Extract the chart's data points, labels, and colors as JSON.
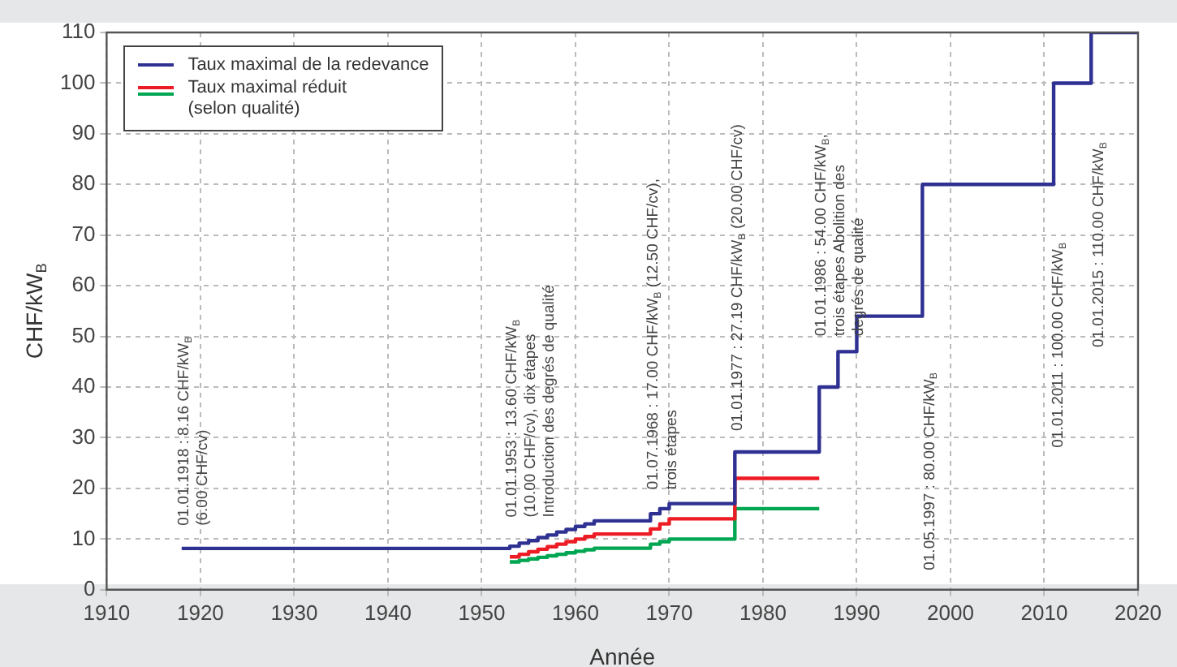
{
  "chart_data": {
    "type": "step",
    "xlabel": "Année",
    "ylabel": "CHF/kW$_{B}$",
    "xlim": [
      1910,
      2020
    ],
    "xticks": [
      1910,
      1920,
      1930,
      1940,
      1950,
      1960,
      1970,
      1980,
      1990,
      2000,
      2010,
      2020
    ],
    "ylim": [
      0,
      110
    ],
    "yticks": [
      0,
      10,
      20,
      30,
      40,
      50,
      60,
      70,
      80,
      90,
      100,
      110
    ],
    "grid": true,
    "legend": "top left",
    "series": [
      {
        "name": "Taux maximal de la redevance",
        "color": "#2e3192",
        "x": [
          1918,
          1953,
          1954,
          1955,
          1956,
          1957,
          1958,
          1959,
          1960,
          1961,
          1962,
          1968,
          1969,
          1970,
          1977,
          1986,
          1988,
          1990,
          1997,
          2011,
          2015,
          2020
        ],
        "values": [
          8.16,
          8.6,
          9.2,
          9.7,
          10.3,
          10.8,
          11.4,
          11.9,
          12.5,
          13,
          13.6,
          15,
          16,
          17,
          27.19,
          40,
          47,
          54,
          80,
          100,
          110,
          110
        ]
      },
      {
        "name": "Taux maximal réduit\n(selon qualité)",
        "color": "#ed1c24",
        "x": [
          1953,
          1954,
          1955,
          1956,
          1957,
          1958,
          1959,
          1960,
          1961,
          1962,
          1968,
          1969,
          1970,
          1977,
          1986
        ],
        "values": [
          6.5,
          7,
          7.5,
          8,
          8.5,
          9,
          9.5,
          10,
          10.5,
          11,
          12,
          13,
          14,
          22,
          22
        ]
      },
      {
        "color": "#00a651",
        "x": [
          1953,
          1954,
          1955,
          1956,
          1957,
          1958,
          1959,
          1960,
          1961,
          1962,
          1968,
          1969,
          1970,
          1977,
          1986
        ],
        "values": [
          5.5,
          5.8,
          6.1,
          6.4,
          6.7,
          7,
          7.3,
          7.6,
          7.9,
          8.2,
          9,
          9.5,
          10,
          16,
          16
        ]
      }
    ],
    "annotations": [
      "01.01.1918 : 8.16 CHF/kW$_{B}$\n(6.00 CHF/cv)",
      "01.01.1953 : 13.60 CHF/kW$_{B}$\n(10.00 CHF/cv), dix étapes\nIntroduction des degrés de qualité",
      "01.07.1968 : 17.00 CHF/kW$_{B}$ (12.50 CHF/cv),\ntrois étapes",
      "01.01.1977 : 27.19 CHF/kW$_{B}$ (20.00 CHF/cv)",
      "01.01.1986 : 54.00 CHF/kW$_{B}$,\ntrois étapes Abolition des\ndegrés de qualité",
      "01.05.1997 : 80.00 CHF/kW$_{B}$",
      "01.01.2011 : 100.00 CHF/kW$_{B}$",
      "01.01.2015 : 110.00 CHF/kW$_{B}$"
    ]
  }
}
